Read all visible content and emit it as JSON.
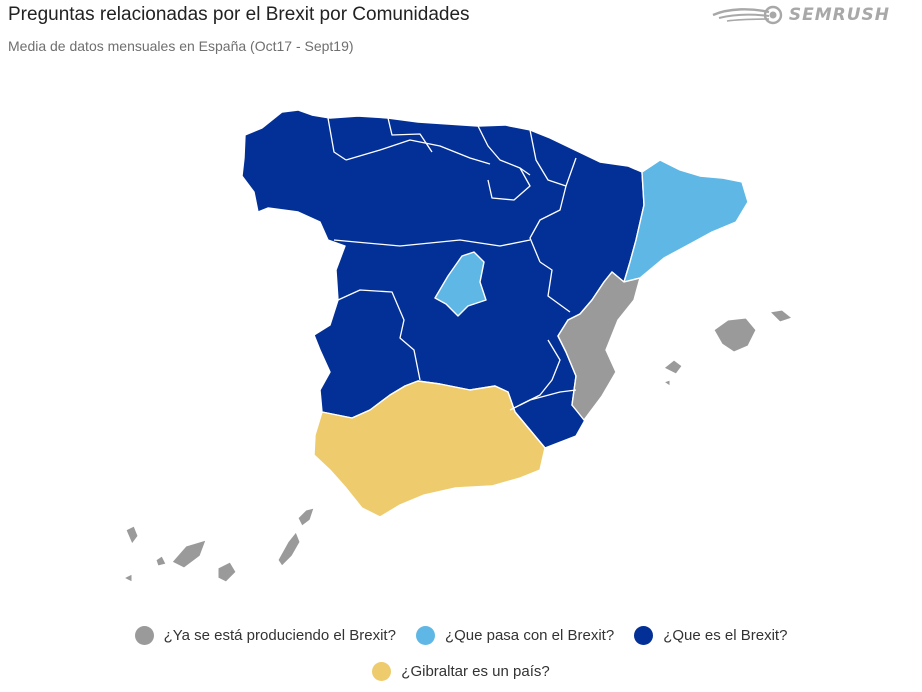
{
  "header": {
    "title": "Preguntas relacionadas por el Brexit por Comunidades",
    "subtitle": "Media de datos mensuales en España (Oct17 - Sept19)",
    "brand": "SEMRUSH",
    "brand_icon": "semrush-fireball-icon"
  },
  "legend": {
    "items": [
      {
        "label": "¿Ya se está produciendo el Brexit?",
        "color": "#9a9a9a"
      },
      {
        "label": "¿Que pasa con el Brexit?",
        "color": "#5fb7e5"
      },
      {
        "label": "¿Que es el Brexit?",
        "color": "#033096"
      },
      {
        "label": "¿Gibraltar es un país?",
        "color": "#eecb6c"
      }
    ]
  },
  "colors": {
    "border": "#ffffff",
    "grey": "#9a9a9a",
    "light_blue": "#5fb7e5",
    "dark_blue": "#033096",
    "yellow": "#eecb6c"
  }
}
